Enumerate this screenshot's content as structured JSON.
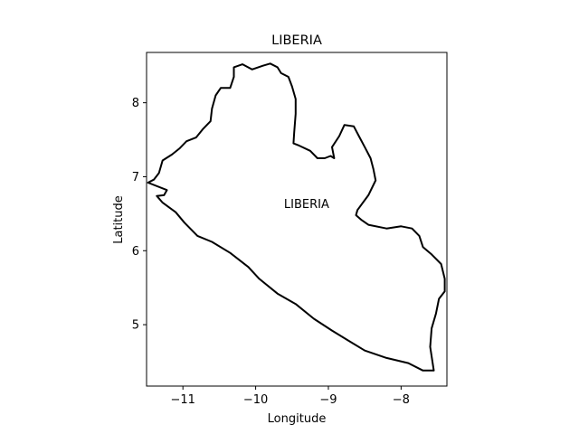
{
  "chart_data": {
    "type": "map",
    "title": "LIBERIA",
    "xlabel": "Longitude",
    "ylabel": "Latitude",
    "xlim": [
      -11.5,
      -7.37
    ],
    "ylim": [
      4.17,
      8.68
    ],
    "xticks": [
      -11,
      -10,
      -9,
      -8
    ],
    "yticks": [
      5,
      6,
      7,
      8
    ],
    "xtick_labels": [
      "−11",
      "−10",
      "−9",
      "−8"
    ],
    "ytick_labels": [
      "5",
      "6",
      "7",
      "8"
    ],
    "grid": false,
    "line_color": "#000000",
    "annotation": {
      "text": "LIBERIA",
      "lon": -9.3,
      "lat": 6.63
    },
    "boundary": [
      [
        -11.48,
        6.92
      ],
      [
        -11.4,
        6.96
      ],
      [
        -11.33,
        7.05
      ],
      [
        -11.28,
        7.22
      ],
      [
        -11.15,
        7.3
      ],
      [
        -11.05,
        7.38
      ],
      [
        -10.95,
        7.48
      ],
      [
        -10.82,
        7.53
      ],
      [
        -10.72,
        7.65
      ],
      [
        -10.62,
        7.75
      ],
      [
        -10.6,
        7.92
      ],
      [
        -10.55,
        8.1
      ],
      [
        -10.48,
        8.2
      ],
      [
        -10.35,
        8.2
      ],
      [
        -10.3,
        8.35
      ],
      [
        -10.3,
        8.48
      ],
      [
        -10.18,
        8.52
      ],
      [
        -10.05,
        8.45
      ],
      [
        -9.9,
        8.5
      ],
      [
        -9.8,
        8.53
      ],
      [
        -9.7,
        8.48
      ],
      [
        -9.65,
        8.4
      ],
      [
        -9.55,
        8.35
      ],
      [
        -9.5,
        8.22
      ],
      [
        -9.45,
        8.05
      ],
      [
        -9.45,
        7.85
      ],
      [
        -9.47,
        7.6
      ],
      [
        -9.48,
        7.45
      ],
      [
        -9.4,
        7.42
      ],
      [
        -9.25,
        7.35
      ],
      [
        -9.15,
        7.25
      ],
      [
        -9.05,
        7.25
      ],
      [
        -8.97,
        7.28
      ],
      [
        -8.92,
        7.25
      ],
      [
        -8.95,
        7.4
      ],
      [
        -8.85,
        7.55
      ],
      [
        -8.78,
        7.7
      ],
      [
        -8.65,
        7.68
      ],
      [
        -8.58,
        7.55
      ],
      [
        -8.5,
        7.4
      ],
      [
        -8.42,
        7.25
      ],
      [
        -8.38,
        7.1
      ],
      [
        -8.35,
        6.95
      ],
      [
        -8.45,
        6.75
      ],
      [
        -8.6,
        6.55
      ],
      [
        -8.62,
        6.48
      ],
      [
        -8.55,
        6.42
      ],
      [
        -8.45,
        6.35
      ],
      [
        -8.2,
        6.3
      ],
      [
        -8.0,
        6.33
      ],
      [
        -7.85,
        6.3
      ],
      [
        -7.75,
        6.2
      ],
      [
        -7.7,
        6.05
      ],
      [
        -7.58,
        5.95
      ],
      [
        -7.45,
        5.82
      ],
      [
        -7.4,
        5.62
      ],
      [
        -7.4,
        5.45
      ],
      [
        -7.48,
        5.35
      ],
      [
        -7.52,
        5.15
      ],
      [
        -7.58,
        4.95
      ],
      [
        -7.6,
        4.7
      ],
      [
        -7.55,
        4.38
      ],
      [
        -7.7,
        4.38
      ],
      [
        -7.9,
        4.48
      ],
      [
        -8.2,
        4.55
      ],
      [
        -8.5,
        4.65
      ],
      [
        -8.75,
        4.8
      ],
      [
        -8.95,
        4.92
      ],
      [
        -9.2,
        5.08
      ],
      [
        -9.45,
        5.28
      ],
      [
        -9.7,
        5.42
      ],
      [
        -9.95,
        5.62
      ],
      [
        -10.1,
        5.78
      ],
      [
        -10.35,
        5.97
      ],
      [
        -10.6,
        6.12
      ],
      [
        -10.8,
        6.2
      ],
      [
        -10.98,
        6.38
      ],
      [
        -11.1,
        6.52
      ],
      [
        -11.28,
        6.65
      ],
      [
        -11.36,
        6.74
      ],
      [
        -11.26,
        6.75
      ],
      [
        -11.22,
        6.82
      ],
      [
        -11.48,
        6.92
      ]
    ]
  }
}
